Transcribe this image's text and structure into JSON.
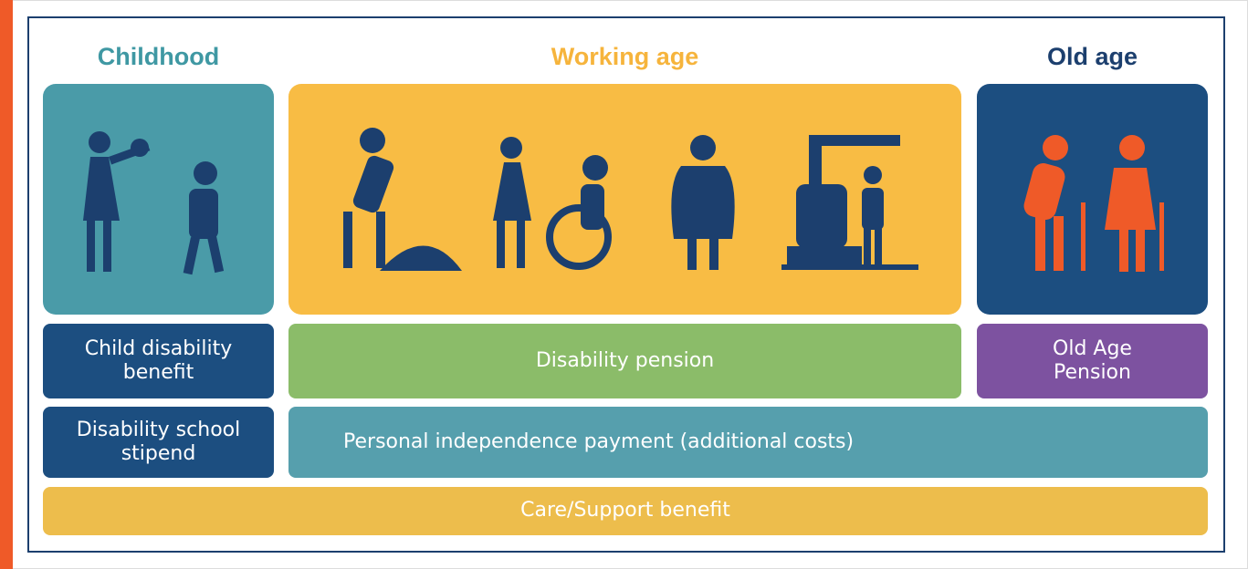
{
  "stages": [
    {
      "title": "Childhood"
    },
    {
      "title": "Working age"
    },
    {
      "title": "Old age"
    }
  ],
  "benefits": [
    {
      "label": "Child disability benefit"
    },
    {
      "label": "Disability pension"
    },
    {
      "label": "Old Age Pension"
    },
    {
      "label": "Disability school stipend"
    },
    {
      "label": "Personal independence payment (additional costs)"
    },
    {
      "label": "Care/Support benefit"
    }
  ]
}
